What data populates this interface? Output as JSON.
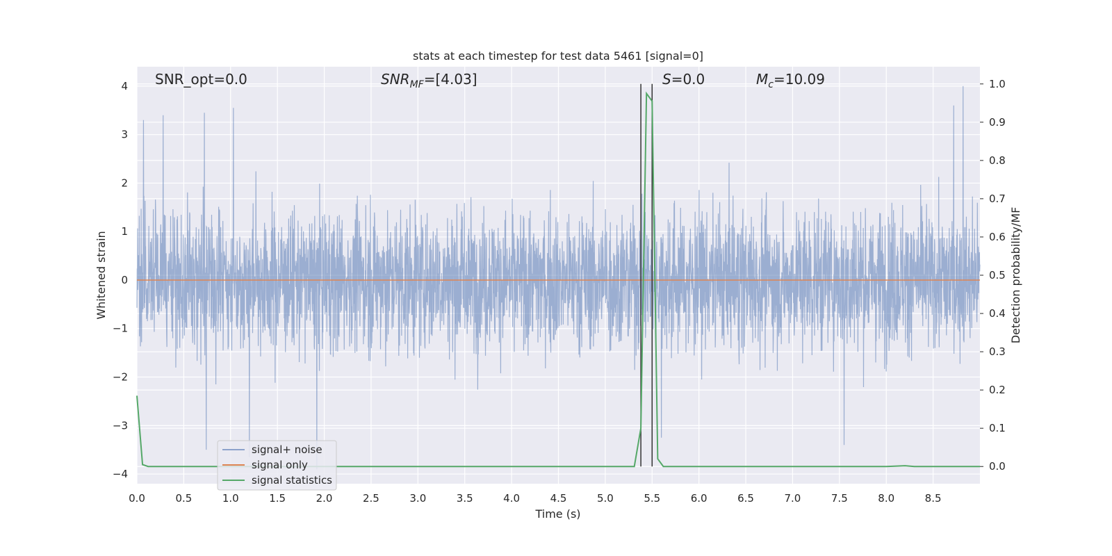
{
  "chart_data": {
    "type": "line",
    "title": "stats at each timestep for test data 5461 [signal=0]",
    "xlabel": "Time (s)",
    "ylabel": "Whitened strain",
    "y2label": "Detection probability/MF",
    "xlim": [
      0.0,
      9.0
    ],
    "ylim": [
      -4.2,
      4.4
    ],
    "y2lim": [
      -0.045,
      1.045
    ],
    "xticks": [
      0.0,
      0.5,
      1.0,
      1.5,
      2.0,
      2.5,
      3.0,
      3.5,
      4.0,
      4.5,
      5.0,
      5.5,
      6.0,
      6.5,
      7.0,
      7.5,
      8.0,
      8.5
    ],
    "xtick_labels": [
      "0.0",
      "0.5",
      "1.0",
      "1.5",
      "2.0",
      "2.5",
      "3.0",
      "3.5",
      "4.0",
      "4.5",
      "5.0",
      "5.5",
      "6.0",
      "6.5",
      "7.0",
      "7.5",
      "8.0",
      "8.5"
    ],
    "yticks": [
      4,
      3,
      2,
      1,
      0,
      -1,
      -2,
      -3,
      -4
    ],
    "ytick_labels": [
      "4",
      "3",
      "2",
      "1",
      "0",
      "−1",
      "−2",
      "−3",
      "−4"
    ],
    "y2ticks": [
      1.0,
      0.9,
      0.8,
      0.7,
      0.6,
      0.5,
      0.4,
      0.3,
      0.2,
      0.1,
      0.0
    ],
    "y2tick_labels": [
      "1.0",
      "0.9",
      "0.8",
      "0.7",
      "0.6",
      "0.5",
      "0.4",
      "0.3",
      "0.2",
      "0.1",
      "0.0"
    ],
    "grid": true,
    "legend_position": "lower-left",
    "annotations": {
      "snr_opt": "SNR_opt=0.0",
      "snr_mf_sym": "SNR",
      "snr_mf_sub": "MF",
      "snr_mf_val": "=[4.03]",
      "s_sym": "S",
      "s_val": "=0.0",
      "mc_sym": "M",
      "mc_sub": "c",
      "mc_val": "=10.09"
    },
    "vertical_lines_x": [
      5.38,
      5.5
    ],
    "series": [
      {
        "name": "signal+ noise",
        "color": "#4c72b0",
        "opacity": 0.5,
        "axis": "left",
        "note_values": "dense noise trace, approx. |amplitude| within [-3.9, 4.0], envelope ±1 to ±4",
        "peaks": [
          {
            "x": 0.07,
            "y": 3.3
          },
          {
            "x": 0.28,
            "y": 3.4
          },
          {
            "x": 0.72,
            "y": 3.45
          },
          {
            "x": 1.03,
            "y": 3.55
          },
          {
            "x": 1.92,
            "y": -3.9
          },
          {
            "x": 0.74,
            "y": -3.5
          },
          {
            "x": 1.2,
            "y": -3.65
          },
          {
            "x": 5.6,
            "y": -3.25
          },
          {
            "x": 7.55,
            "y": -3.4
          },
          {
            "x": 8.82,
            "y": 4.0
          },
          {
            "x": 8.72,
            "y": 3.6
          }
        ]
      },
      {
        "name": "signal only",
        "color": "#dd8452",
        "axis": "left",
        "x": [
          0.0,
          9.0
        ],
        "y": [
          0.0,
          0.0
        ]
      },
      {
        "name": "signal statistics",
        "color": "#55a868",
        "axis": "right",
        "x": [
          0.0,
          0.06,
          0.12,
          0.5,
          1.0,
          2.0,
          3.0,
          4.0,
          5.0,
          5.31,
          5.38,
          5.44,
          5.5,
          5.56,
          5.62,
          6.0,
          7.0,
          8.0,
          8.2,
          8.3,
          9.0
        ],
        "y": [
          0.185,
          0.005,
          0.0,
          0.0,
          0.0,
          0.0,
          0.0,
          0.0,
          0.0,
          0.0,
          0.1,
          0.975,
          0.955,
          0.02,
          0.0,
          0.0,
          0.0,
          0.0,
          0.002,
          0.0,
          0.0
        ]
      }
    ]
  }
}
